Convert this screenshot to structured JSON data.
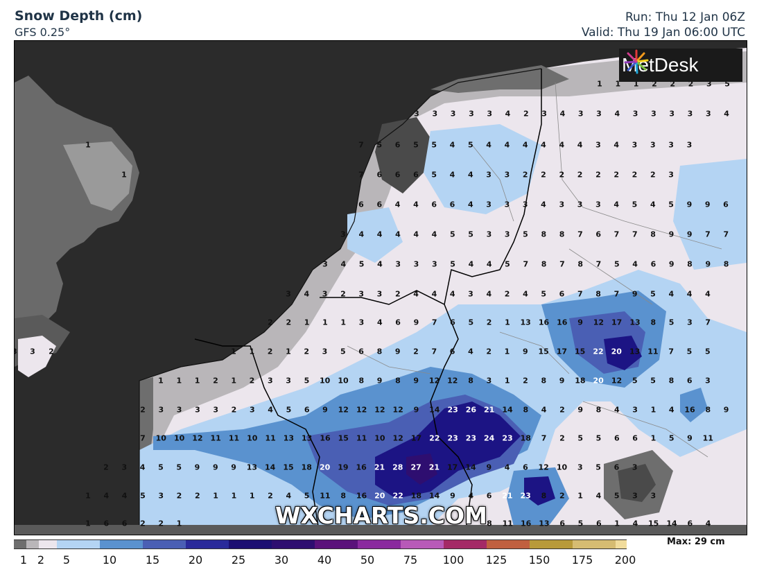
{
  "header": {
    "title": "Snow Depth (cm)",
    "model": "GFS 0.25°",
    "run": "Run: Thu 12 Jan 06Z",
    "valid": "Valid: Thu 19 Jan 06:00 UTC"
  },
  "logo": {
    "text": "MetDesk",
    "icon": "metdesk-burst-icon"
  },
  "watermark": "WXCHARTS.COM",
  "legend": {
    "max_label": "Max: 29 cm",
    "ticks": [
      "1",
      "2",
      "5",
      "10",
      "15",
      "20",
      "25",
      "30",
      "40",
      "50",
      "75",
      "100",
      "125",
      "150",
      "175",
      "200"
    ],
    "colors": [
      "#6e6e6e",
      "#b9b6b9",
      "#ece6ed",
      "#b4d4f3",
      "#5a92cf",
      "#4a5fb4",
      "#2a2a9a",
      "#1c0f72",
      "#2e0e70",
      "#5a127a",
      "#8a2a9e",
      "#b85ab8",
      "#a42a66",
      "#c06040",
      "#b89a3a",
      "#d6bc72",
      "#f1dc9c"
    ]
  },
  "colors": {
    "sea": "#2b2b2b",
    "land_light": "#ece6ed",
    "header_text": "#1f3346"
  },
  "values": {
    "r1": [
      "1",
      "1",
      "1",
      "2",
      "2",
      "2",
      "3",
      "5"
    ],
    "r2": [
      "3",
      "3",
      "3",
      "3",
      "3",
      "4",
      "2",
      "3",
      "4",
      "3",
      "3",
      "4",
      "3",
      "3",
      "3",
      "3",
      "3",
      "4"
    ],
    "r3": [
      "1",
      "7",
      "5",
      "6",
      "5",
      "5",
      "4",
      "5",
      "4",
      "4",
      "4",
      "4",
      "4",
      "4",
      "3",
      "4",
      "3",
      "3",
      "3",
      "3"
    ],
    "r4": [
      "1",
      "7",
      "6",
      "6",
      "6",
      "5",
      "4",
      "4",
      "3",
      "3",
      "2",
      "2",
      "2",
      "2",
      "2",
      "2",
      "2",
      "2",
      "3"
    ],
    "r5": [
      "6",
      "6",
      "4",
      "4",
      "6",
      "6",
      "4",
      "3",
      "3",
      "3",
      "4",
      "3",
      "3",
      "3",
      "4",
      "5",
      "4",
      "5",
      "9",
      "9",
      "6"
    ],
    "r6": [
      "3",
      "4",
      "4",
      "4",
      "4",
      "4",
      "5",
      "5",
      "3",
      "3",
      "5",
      "8",
      "8",
      "7",
      "6",
      "7",
      "7",
      "8",
      "9",
      "9",
      "7",
      "7"
    ],
    "r7": [
      "3",
      "4",
      "5",
      "4",
      "3",
      "3",
      "3",
      "5",
      "4",
      "4",
      "5",
      "7",
      "8",
      "7",
      "8",
      "7",
      "5",
      "4",
      "6",
      "9",
      "8",
      "9",
      "8"
    ],
    "r8": [
      "3",
      "4",
      "3",
      "2",
      "3",
      "3",
      "2",
      "4",
      "4",
      "4",
      "3",
      "4",
      "2",
      "4",
      "5",
      "6",
      "7",
      "8",
      "7",
      "9",
      "5",
      "4",
      "4",
      "4"
    ],
    "r9": [
      "2",
      "2",
      "1",
      "1",
      "1",
      "3",
      "4",
      "6",
      "9",
      "7",
      "6",
      "5",
      "2",
      "1",
      "13",
      "16",
      "16",
      "9",
      "12",
      "17",
      "13",
      "8",
      "5",
      "3",
      "7"
    ],
    "r10": [
      "3",
      "3",
      "2",
      "1",
      "1",
      "2",
      "1",
      "2",
      "3",
      "5",
      "6",
      "8",
      "9",
      "2",
      "7",
      "6",
      "4",
      "2",
      "1",
      "9",
      "15",
      "17",
      "15",
      "22",
      "20",
      "13",
      "11",
      "7",
      "5",
      "5"
    ],
    "r11": [
      "1",
      "1",
      "1",
      "2",
      "1",
      "2",
      "3",
      "3",
      "5",
      "10",
      "10",
      "8",
      "9",
      "8",
      "9",
      "12",
      "12",
      "8",
      "3",
      "1",
      "2",
      "8",
      "9",
      "18",
      "20",
      "12",
      "5",
      "5",
      "8",
      "6",
      "3"
    ],
    "r12": [
      "2",
      "3",
      "3",
      "3",
      "3",
      "2",
      "3",
      "4",
      "5",
      "6",
      "9",
      "12",
      "12",
      "12",
      "12",
      "9",
      "14",
      "23",
      "26",
      "21",
      "14",
      "8",
      "4",
      "2",
      "9",
      "8",
      "4",
      "3",
      "1",
      "4",
      "16",
      "8",
      "9"
    ],
    "r13": [
      "7",
      "10",
      "10",
      "12",
      "11",
      "11",
      "10",
      "11",
      "13",
      "13",
      "16",
      "15",
      "11",
      "10",
      "12",
      "17",
      "22",
      "23",
      "23",
      "24",
      "23",
      "18",
      "7",
      "2",
      "5",
      "5",
      "6",
      "6",
      "1",
      "5",
      "9",
      "11"
    ],
    "r14": [
      "2",
      "3",
      "4",
      "5",
      "5",
      "9",
      "9",
      "9",
      "13",
      "14",
      "15",
      "18",
      "20",
      "19",
      "16",
      "21",
      "28",
      "27",
      "21",
      "17",
      "14",
      "9",
      "4",
      "6",
      "12",
      "10",
      "3",
      "5",
      "6",
      "3"
    ],
    "r15": [
      "1",
      "4",
      "4",
      "5",
      "3",
      "2",
      "2",
      "1",
      "1",
      "1",
      "2",
      "4",
      "5",
      "11",
      "8",
      "16",
      "20",
      "22",
      "18",
      "14",
      "9",
      "4",
      "6",
      "21",
      "23",
      "8",
      "2",
      "1",
      "4",
      "5",
      "3",
      "3"
    ],
    "r16": [
      "1",
      "6",
      "6",
      "2",
      "2",
      "1",
      "8",
      "11",
      "16",
      "13",
      "6",
      "5",
      "6",
      "1",
      "4",
      "15",
      "14",
      "6",
      "4"
    ]
  }
}
